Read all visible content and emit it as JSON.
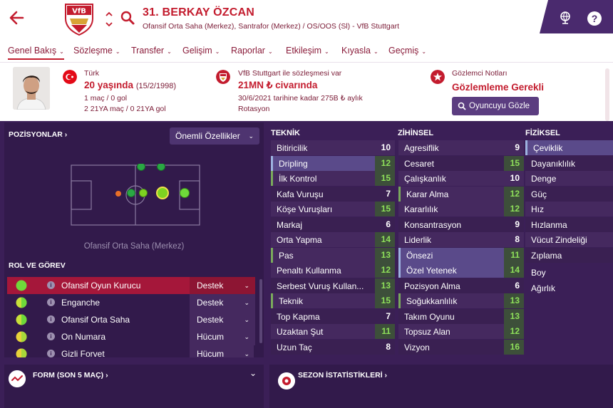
{
  "header": {
    "player_name": "31. BERKAY ÖZCAN",
    "player_sub": "Ofansif Orta Saha (Merkez), Santrafor (Merkez) / OS/OOS (Sl) - VfB Stuttgart",
    "club_crest_text": "VfB",
    "help_label": "?"
  },
  "nav": {
    "items": [
      {
        "label": "Genel Bakış"
      },
      {
        "label": "Sözleşme"
      },
      {
        "label": "Transfer"
      },
      {
        "label": "Gelişim"
      },
      {
        "label": "Raporlar"
      },
      {
        "label": "Etkileşim"
      },
      {
        "label": "Kıyasla"
      },
      {
        "label": "Geçmiş"
      }
    ],
    "chevron": "⌄"
  },
  "info": {
    "nationality": "Türk",
    "age": "20 yaşında",
    "dob": "(15/2/1998)",
    "caps": "1 maç / 0 gol",
    "u21": "2 21YA maç / 0 21YA gol",
    "contract_label": "VfB Stuttgart ile sözleşmesi var",
    "value": "21MN ₺ civarında",
    "contract_until": "30/6/2021 tarihine kadar 275B ₺ aylık",
    "squad_status": "Rotasyon",
    "scout_label": "Gözlemci Notları",
    "scout_status": "Gözlemleme Gerekli",
    "scout_button": "Oyuncuyu Gözle"
  },
  "positions": {
    "title": "POZİSYONLAR ›",
    "dropdown": "Önemli Özellikler",
    "caption": "Ofansif Orta Saha (Merkez)"
  },
  "roles": {
    "title": "ROL VE GÖREV",
    "info_glyph": "i",
    "items": [
      {
        "name": "Ofansif Oyun Kurucu",
        "duty": "Destek",
        "selected": true
      },
      {
        "name": "Enganche",
        "duty": "Destek",
        "selected": false
      },
      {
        "name": "Ofansif Orta Saha",
        "duty": "Destek",
        "selected": false
      },
      {
        "name": "On Numara",
        "duty": "Hücum",
        "selected": false
      },
      {
        "name": "Gizli Forvet",
        "duty": "Hücum",
        "selected": false
      }
    ]
  },
  "attributes": {
    "technical": {
      "title": "TEKNİK",
      "rows": [
        {
          "name": "Bitiricilik",
          "value": "10"
        },
        {
          "name": "Dripling",
          "value": "12"
        },
        {
          "name": "İlk Kontrol",
          "value": "15"
        },
        {
          "name": "Kafa Vuruşu",
          "value": "7"
        },
        {
          "name": "Köşe Vuruşları",
          "value": "15"
        },
        {
          "name": "Markaj",
          "value": "6"
        },
        {
          "name": "Orta Yapma",
          "value": "14"
        },
        {
          "name": "Pas",
          "value": "13"
        },
        {
          "name": "Penaltı Kullanma",
          "value": "12"
        },
        {
          "name": "Serbest Vuruş Kullan...",
          "value": "13"
        },
        {
          "name": "Teknik",
          "value": "15"
        },
        {
          "name": "Top Kapma",
          "value": "7"
        },
        {
          "name": "Uzaktan Şut",
          "value": "11"
        },
        {
          "name": "Uzun Taç",
          "value": "8"
        }
      ]
    },
    "mental": {
      "title": "ZİHİNSEL",
      "rows": [
        {
          "name": "Agresiflik",
          "value": "9"
        },
        {
          "name": "Cesaret",
          "value": "15"
        },
        {
          "name": "Çalışkanlık",
          "value": "10"
        },
        {
          "name": "Karar Alma",
          "value": "12"
        },
        {
          "name": "Kararlılık",
          "value": "12"
        },
        {
          "name": "Konsantrasyon",
          "value": "9"
        },
        {
          "name": "Liderlik",
          "value": "8"
        },
        {
          "name": "Önsezi",
          "value": "11"
        },
        {
          "name": "Özel Yetenek",
          "value": "14"
        },
        {
          "name": "Pozisyon Alma",
          "value": "6"
        },
        {
          "name": "Soğukkanlılık",
          "value": "13"
        },
        {
          "name": "Takım Oyunu",
          "value": "13"
        },
        {
          "name": "Topsuz Alan",
          "value": "12"
        },
        {
          "name": "Vizyon",
          "value": "16"
        }
      ]
    },
    "physical": {
      "title": "FİZİKSEL",
      "rows": [
        {
          "name": "Çeviklik"
        },
        {
          "name": "Dayanıklılık"
        },
        {
          "name": "Denge"
        },
        {
          "name": "Güç"
        },
        {
          "name": "Hız"
        },
        {
          "name": "Hızlanma"
        },
        {
          "name": "Vücut Zindeliği"
        },
        {
          "name": "Zıplama"
        },
        {
          "name": "Boy"
        },
        {
          "name": "Ağırlık"
        }
      ]
    }
  },
  "bottom": {
    "form_title": "FORM (SON 5 MAÇ) ›",
    "season_title": "SEZON İSTATİSTİKLERİ ›"
  },
  "colors": {
    "accent": "#c31c2e",
    "panel": "#321a4b",
    "background": "#3b1f57",
    "highlight_green": "#6fd93a",
    "role_selected": "#a5173a"
  }
}
